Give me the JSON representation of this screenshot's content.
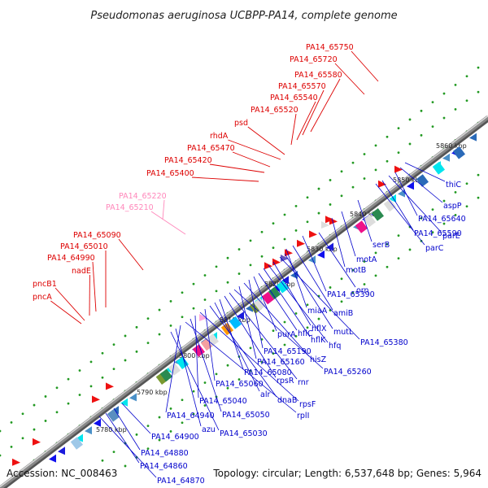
{
  "title": "Pseudomonas aeruginosa UCBPP-PA14, complete genome",
  "footer": {
    "accession": "Accession: NC_008463",
    "info": "Topology: circular; Length: 6,537,648 bp; Genes: 5,964"
  },
  "colors": {
    "forward_label": "#dd0000",
    "reverse_label": "#0000cc",
    "faded_label": "#ff88bb",
    "guide_dots": "#229922",
    "backbone": "#888888"
  },
  "kbp_ticks": [
    "5780 kbp",
    "5790 kbp",
    "5800 kbp",
    "5810 kbp",
    "5820 kbp",
    "5830 kbp",
    "5840 kbp",
    "5850 kbp",
    "5860 kbp"
  ],
  "top_labels": [
    {
      "text": "PA14_65750",
      "color": "#dd0000"
    },
    {
      "text": "PA14_65720",
      "color": "#dd0000"
    },
    {
      "text": "PA14_65580",
      "color": "#dd0000"
    },
    {
      "text": "PA14_65570",
      "color": "#dd0000"
    },
    {
      "text": "PA14_65540",
      "color": "#dd0000"
    },
    {
      "text": "PA14_65520",
      "color": "#dd0000"
    },
    {
      "text": "psd",
      "color": "#dd0000"
    },
    {
      "text": "rhdA",
      "color": "#dd0000"
    },
    {
      "text": "PA14_65470",
      "color": "#dd0000"
    },
    {
      "text": "PA14_65420",
      "color": "#dd0000"
    },
    {
      "text": "PA14_65400",
      "color": "#dd0000"
    },
    {
      "text": "PA14_65220",
      "color": "#ff88bb"
    },
    {
      "text": "PA14_65210",
      "color": "#ff88bb"
    },
    {
      "text": "PA14_65090",
      "color": "#dd0000"
    },
    {
      "text": "PA14_65010",
      "color": "#dd0000"
    },
    {
      "text": "PA14_64990",
      "color": "#dd0000"
    },
    {
      "text": "nadE",
      "color": "#dd0000"
    },
    {
      "text": "pncB1",
      "color": "#dd0000"
    },
    {
      "text": "pncA",
      "color": "#dd0000"
    }
  ],
  "bottom_labels": [
    "thiC",
    "aspP",
    "PA14_65640",
    "parE",
    "PA14_65590",
    "parC",
    "serB",
    "motA",
    "motB",
    "orn",
    "PA14_65390",
    "amiB",
    "miaA",
    "mutL",
    "PA14_65380",
    "hflX",
    "hfq",
    "hflK",
    "hflC",
    "purA",
    "PA14_65190",
    "hisZ",
    "PA14_65160",
    "PA14_65260",
    "rnr",
    "rpsR",
    "PA14_65080",
    "alr",
    "dnaB",
    "PA14_65060",
    "rpsF",
    "PA14_65040",
    "PA14_65050",
    "rplI",
    "PA14_64940",
    "azu",
    "PA14_65030",
    "PA14_64900",
    "PA14_64880",
    "PA14_64860",
    "PA14_64870"
  ]
}
